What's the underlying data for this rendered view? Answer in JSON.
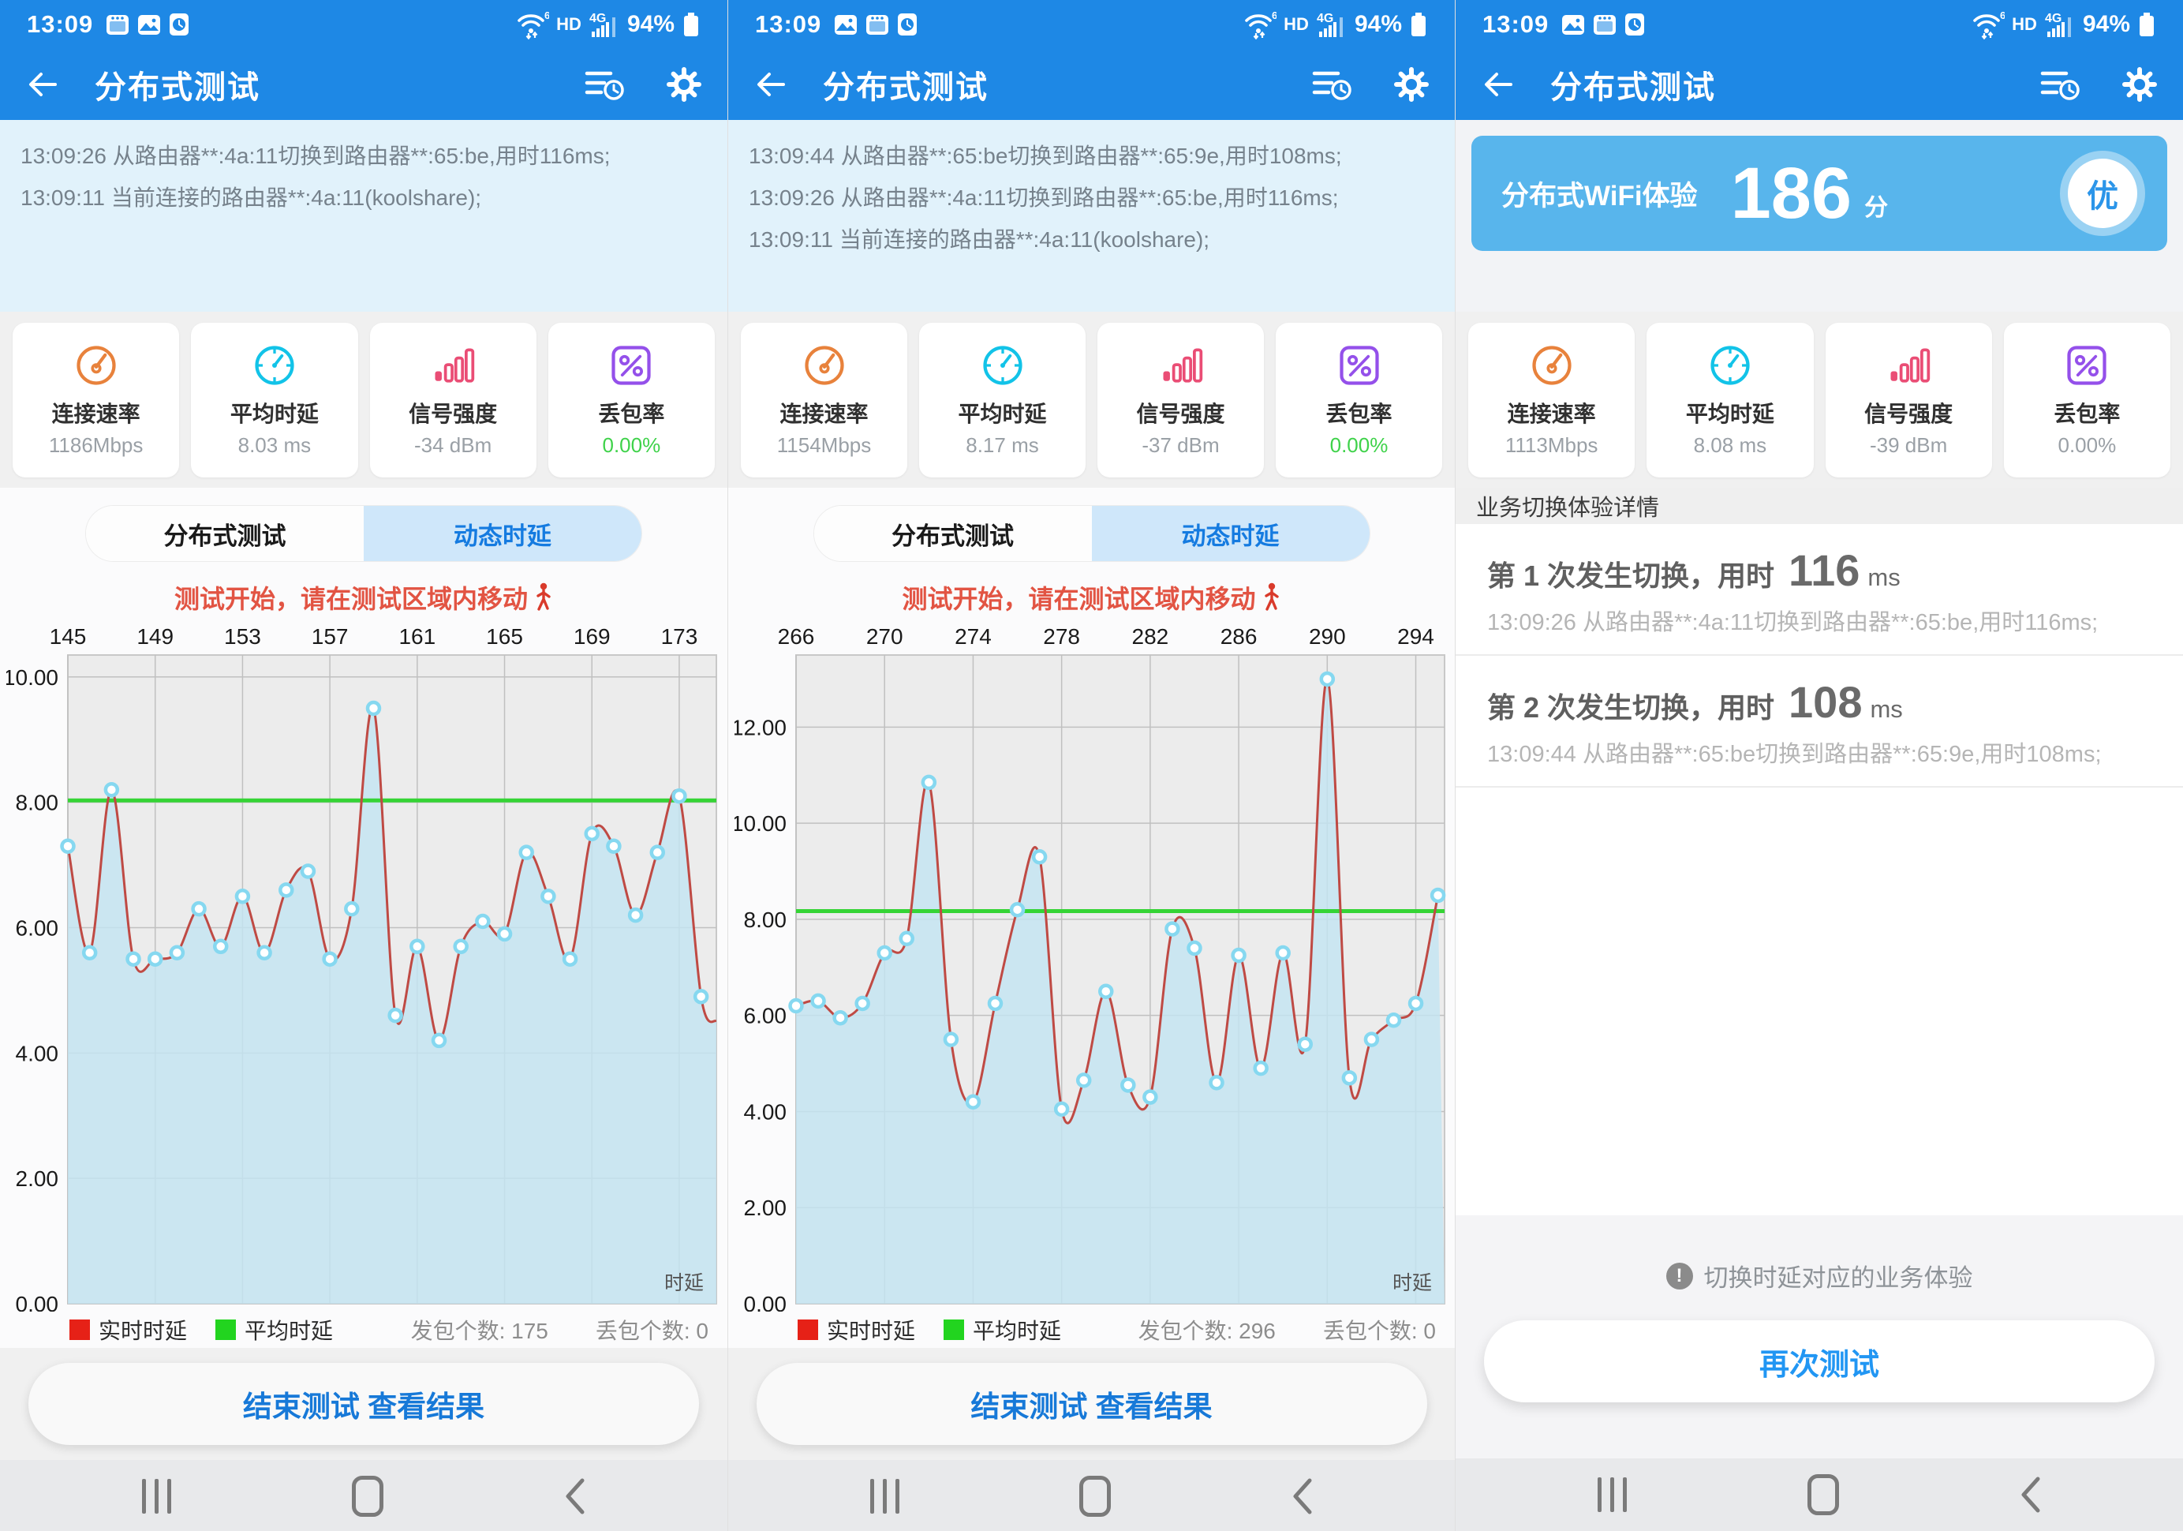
{
  "colors": {
    "appbar_blue": "#1e88e5",
    "banner_blue": "#58b5ec",
    "tab_active_bg": "#cfe7fa",
    "tab_active_text": "#157be0",
    "notice_red": "#e25443",
    "realtime_red": "#e62117",
    "average_green": "#22d41f",
    "line_red": "#bf4a44",
    "area_blue": "#c3e5f2",
    "marker_ring": "#86d8f0",
    "loss_green": "#3fd24a",
    "button_text_blue": "#1779d8"
  },
  "status": {
    "time": "13:09",
    "wifi_gen": "6",
    "hd_label": "HD",
    "network": "4G",
    "battery_pct": "94%"
  },
  "header": {
    "title": "分布式测试"
  },
  "tabs": [
    {
      "label": "分布式测试",
      "active": false
    },
    {
      "label": "动态时延",
      "active": true
    }
  ],
  "notice": "测试开始，请在测试区域内移动",
  "legend": {
    "series": [
      {
        "label": "实时时延",
        "color": "#e62117"
      },
      {
        "label": "平均时延",
        "color": "#22d41f"
      }
    ]
  },
  "end_button": "结束测试 查看结果",
  "screens": [
    {
      "log_lines": [
        "13:09:26 从路由器**:4a:11切换到路由器**:65:be,用时116ms;",
        "13:09:11 当前连接的路由器**:4a:11(koolshare);"
      ],
      "metrics": [
        {
          "label": "连接速率",
          "value": "1186Mbps"
        },
        {
          "label": "平均时延",
          "value": "8.03 ms"
        },
        {
          "label": "信号强度",
          "value": "-34 dBm"
        },
        {
          "label": "丢包率",
          "value": "0.00%",
          "highlight": true
        }
      ],
      "packets": "发包个数: 175",
      "loss": "丢包个数: 0",
      "chart_data": {
        "type": "area",
        "title": "动态时延实时曲线",
        "x_start": 145,
        "x_ticks": [
          145,
          149,
          153,
          157,
          161,
          165,
          169,
          173
        ],
        "xlim": [
          145,
          174.7
        ],
        "y_ticks": [
          0,
          2,
          4,
          6,
          8,
          10
        ],
        "ylim": [
          0,
          10.35
        ],
        "values": [
          7.3,
          5.6,
          8.2,
          5.5,
          5.5,
          5.6,
          6.3,
          5.7,
          6.5,
          5.6,
          6.6,
          6.9,
          5.5,
          6.3,
          9.5,
          4.6,
          5.7,
          4.2,
          5.7,
          6.1,
          5.9,
          7.2,
          6.5,
          5.5,
          7.5,
          7.3,
          6.2,
          7.2,
          8.1,
          4.9
        ],
        "edge_y": 4.5,
        "average": 8.03,
        "series_names": [
          "实时时延",
          "平均时延"
        ],
        "corner_label": "时延",
        "grid": true
      }
    },
    {
      "log_lines": [
        "13:09:44 从路由器**:65:be切换到路由器**:65:9e,用时108ms;",
        "13:09:26 从路由器**:4a:11切换到路由器**:65:be,用时116ms;",
        "13:09:11 当前连接的路由器**:4a:11(koolshare);"
      ],
      "metrics": [
        {
          "label": "连接速率",
          "value": "1154Mbps"
        },
        {
          "label": "平均时延",
          "value": "8.17 ms"
        },
        {
          "label": "信号强度",
          "value": "-37 dBm"
        },
        {
          "label": "丢包率",
          "value": "0.00%",
          "highlight": true
        }
      ],
      "packets": "发包个数: 296",
      "loss": "丢包个数: 0",
      "chart_data": {
        "type": "area",
        "title": "动态时延实时曲线",
        "x_start": 266,
        "x_ticks": [
          266,
          270,
          274,
          278,
          282,
          286,
          290,
          294
        ],
        "xlim": [
          266,
          295.3
        ],
        "y_ticks": [
          0,
          2,
          4,
          6,
          8,
          10,
          12
        ],
        "ylim": [
          0,
          13.5
        ],
        "values": [
          6.2,
          6.3,
          5.95,
          6.25,
          7.3,
          7.6,
          10.85,
          5.5,
          4.2,
          6.25,
          8.2,
          9.3,
          4.05,
          4.65,
          6.5,
          4.55,
          4.3,
          7.8,
          7.4,
          4.6,
          7.25,
          4.9,
          7.3,
          5.4,
          13.0,
          4.7,
          5.5,
          5.9,
          6.25,
          8.5
        ],
        "edge_y": null,
        "average": 8.17,
        "series_names": [
          "实时时延",
          "平均时延"
        ],
        "corner_label": "时延",
        "grid": true
      }
    },
    {
      "score": {
        "label": "分布式WiFi体验",
        "value": "186",
        "unit": "分",
        "badge": "优"
      },
      "metrics": [
        {
          "label": "连接速率",
          "value": "1113Mbps"
        },
        {
          "label": "平均时延",
          "value": "8.08 ms"
        },
        {
          "label": "信号强度",
          "value": "-39 dBm"
        },
        {
          "label": "丢包率",
          "value": "0.00%",
          "highlight": false
        }
      ],
      "section_title": "业务切换体验详情",
      "switches": [
        {
          "title": "第 1 次发生切换，用时",
          "ms": "116",
          "unit": "ms",
          "detail": "13:09:26 从路由器**:4a:11切换到路由器**:65:be,用时116ms;"
        },
        {
          "title": "第 2 次发生切换，用时",
          "ms": "108",
          "unit": "ms",
          "detail": "13:09:44 从路由器**:65:be切换到路由器**:65:9e,用时108ms;"
        }
      ],
      "tip": "切换时延对应的业务体验",
      "tip_icon": "exclamation-icon",
      "retest_button": "再次测试"
    }
  ]
}
